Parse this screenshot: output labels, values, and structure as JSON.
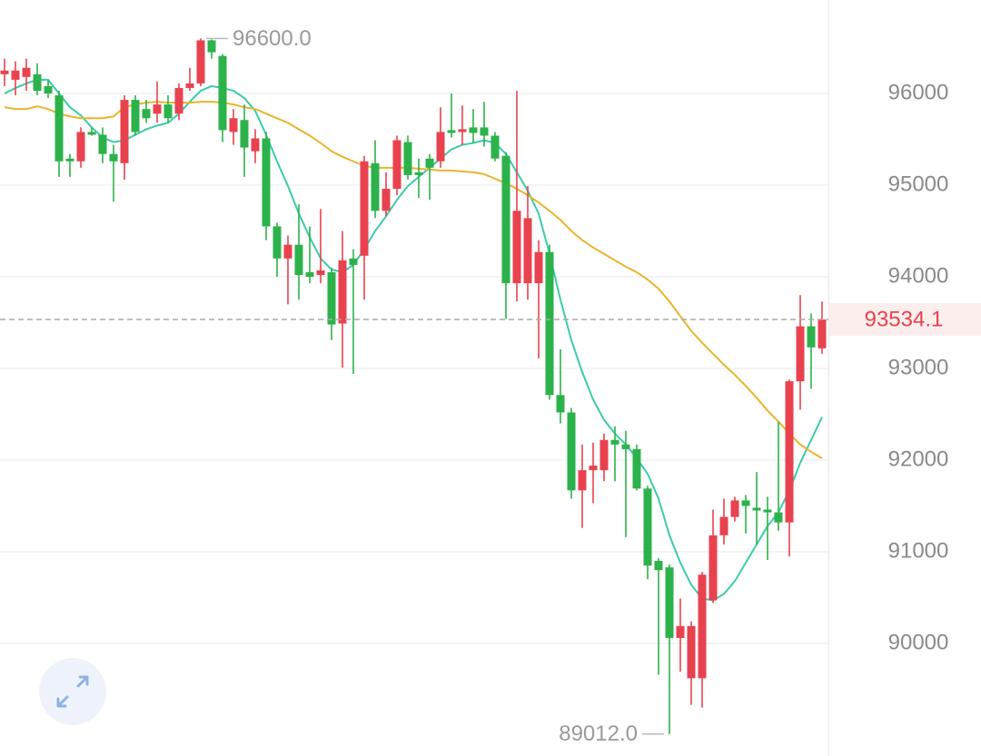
{
  "chart_data": {
    "type": "candlestick",
    "up_color": "#e8424f",
    "down_color": "#2cb24a",
    "grid": true,
    "ylim": [
      88772,
      97020
    ],
    "yticks": [
      90000,
      91000,
      92000,
      93000,
      94000,
      95000,
      96000
    ],
    "open": [
      96210,
      96150,
      96180,
      96210,
      96080,
      95980,
      95290,
      95260,
      95580,
      95550,
      95340,
      95240,
      95930,
      95830,
      95780,
      95880,
      95780,
      96060,
      96110,
      96580,
      96410,
      95580,
      95710,
      95370,
      95510,
      94550,
      94200,
      94350,
      94050,
      94020,
      94050,
      93490,
      94200,
      94230,
      95240,
      94720,
      94960,
      95470,
      95140,
      95290,
      95260,
      95600,
      95580,
      95630,
      95630,
      95540,
      95320,
      93930,
      93930,
      93930,
      94270,
      92710,
      92520,
      91670,
      91890,
      91890,
      92220,
      92170,
      92120,
      91690,
      90900,
      90830,
      90060,
      89620,
      89620,
      90470,
      91180,
      91380,
      91560,
      91480,
      91460,
      91430,
      91320,
      92860,
      93460,
      93220
    ],
    "close": [
      96250,
      96250,
      96280,
      96030,
      96000,
      95260,
      95260,
      95580,
      95550,
      95340,
      95260,
      95930,
      95580,
      95730,
      95880,
      95730,
      96060,
      96110,
      96580,
      96450,
      95600,
      95730,
      95410,
      95510,
      94550,
      94200,
      94350,
      94020,
      94000,
      94070,
      93480,
      94180,
      94130,
      95260,
      94720,
      94960,
      95490,
      95110,
      95110,
      95190,
      95580,
      95570,
      95610,
      95570,
      95540,
      95290,
      93930,
      94720,
      94640,
      94270,
      92710,
      92520,
      91670,
      91890,
      91940,
      92220,
      92170,
      92120,
      91690,
      90850,
      90800,
      90060,
      90190,
      90190,
      90750,
      91180,
      91380,
      91560,
      91500,
      91450,
      91430,
      91320,
      92860,
      93460,
      93230,
      93534.1
    ],
    "high": [
      96380,
      96350,
      96380,
      96330,
      96150,
      96030,
      95340,
      95630,
      95630,
      95630,
      95440,
      95980,
      95980,
      95930,
      96130,
      95980,
      96110,
      96280,
      96600,
      96590,
      96430,
      95830,
      95880,
      95610,
      95580,
      94590,
      94450,
      94790,
      94550,
      94740,
      94100,
      94500,
      94300,
      95320,
      95490,
      95140,
      95540,
      95540,
      95290,
      95340,
      95850,
      96000,
      95870,
      95830,
      95910,
      95580,
      95360,
      96030,
      94990,
      94400,
      94350,
      93210,
      92570,
      92170,
      92190,
      92290,
      92370,
      92320,
      92170,
      91720,
      90930,
      90860,
      90490,
      90240,
      90780,
      91460,
      91580,
      91600,
      91620,
      91870,
      91600,
      92420,
      92880,
      93800,
      93600,
      93730
    ],
    "low": [
      96080,
      95980,
      96030,
      95980,
      95950,
      95090,
      95090,
      95190,
      95540,
      95240,
      94820,
      95060,
      95540,
      95680,
      95680,
      95680,
      95710,
      96030,
      96080,
      96380,
      95470,
      95440,
      95090,
      95240,
      94400,
      94000,
      93700,
      93750,
      93930,
      93930,
      93310,
      93010,
      92940,
      93750,
      94640,
      94660,
      94890,
      95060,
      94860,
      94840,
      95190,
      95520,
      95440,
      95460,
      95420,
      95260,
      93540,
      93730,
      93750,
      93110,
      92660,
      92400,
      91580,
      91260,
      91530,
      91770,
      91770,
      91160,
      91670,
      90700,
      89660,
      89012,
      89690,
      89330,
      89300,
      90440,
      91080,
      91330,
      91200,
      91080,
      90910,
      91230,
      90950,
      92550,
      92780,
      93160
    ],
    "ma_lines": [
      {
        "color": "#3ccbab",
        "values": [
          96000,
          96060,
          96110,
          96150,
          96150,
          96000,
          95850,
          95760,
          95630,
          95520,
          95470,
          95490,
          95550,
          95610,
          95650,
          95680,
          95780,
          95910,
          96030,
          96080,
          96060,
          96030,
          95950,
          95810,
          95550,
          95260,
          94990,
          94690,
          94430,
          94200,
          94080,
          94050,
          94130,
          94300,
          94500,
          94660,
          94840,
          94990,
          95090,
          95190,
          95290,
          95390,
          95440,
          95460,
          95490,
          95460,
          95340,
          95140,
          94940,
          94690,
          94250,
          93750,
          93310,
          92960,
          92660,
          92440,
          92290,
          92170,
          92020,
          91850,
          91580,
          91180,
          90880,
          90640,
          90490,
          90470,
          90540,
          90680,
          90880,
          91080,
          91280,
          91430,
          91670,
          91970,
          92220,
          92470
        ]
      },
      {
        "color": "#e9b52c",
        "values": [
          95850,
          95830,
          95830,
          95860,
          95830,
          95780,
          95750,
          95730,
          95730,
          95730,
          95750,
          95850,
          95880,
          95900,
          95910,
          95900,
          95900,
          95900,
          95910,
          95910,
          95900,
          95880,
          95850,
          95830,
          95780,
          95730,
          95680,
          95610,
          95540,
          95460,
          95370,
          95310,
          95260,
          95210,
          95190,
          95190,
          95190,
          95190,
          95180,
          95170,
          95160,
          95160,
          95150,
          95140,
          95120,
          95070,
          95020,
          94960,
          94890,
          94810,
          94720,
          94620,
          94500,
          94400,
          94320,
          94250,
          94180,
          94110,
          94050,
          93970,
          93870,
          93730,
          93570,
          93410,
          93280,
          93160,
          93040,
          92930,
          92810,
          92680,
          92540,
          92420,
          92290,
          92170,
          92090,
          92020
        ]
      }
    ],
    "annotations": [
      {
        "value": 96600,
        "label": "96600.0"
      },
      {
        "value": 89012,
        "label": "89012.0"
      }
    ],
    "last_price": {
      "value": 93534.1,
      "label": "93534.1"
    }
  }
}
